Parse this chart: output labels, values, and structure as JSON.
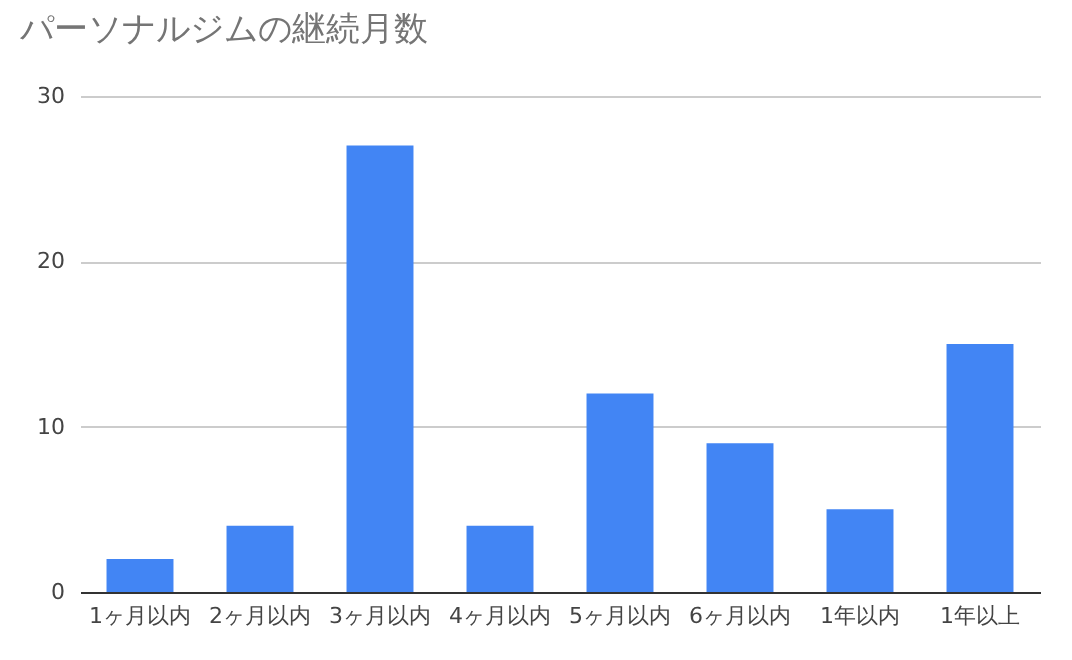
{
  "chart_data": {
    "type": "bar",
    "title": "パーソナルジムの継続月数",
    "categories": [
      "1ヶ月以内",
      "2ヶ月以内",
      "3ヶ月以内",
      "4ヶ月以内",
      "5ヶ月以内",
      "6ヶ月以内",
      "1年以内",
      "1年以上"
    ],
    "values": [
      2,
      4,
      27,
      4,
      12,
      9,
      5,
      15
    ],
    "color": "#4285f4",
    "ylim": [
      0,
      30
    ],
    "yticks": [
      0,
      10,
      20,
      30
    ],
    "grid": "y"
  }
}
